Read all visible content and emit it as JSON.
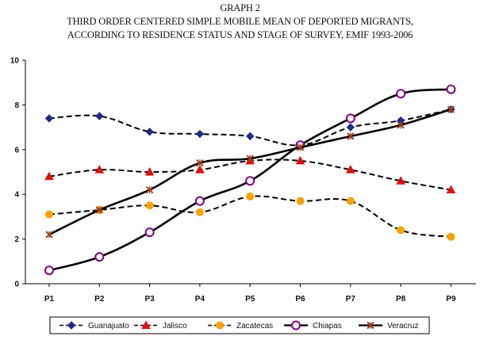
{
  "chart_data": {
    "type": "line",
    "title_lines": [
      "GRAPH 2",
      "THIRD ORDER CENTERED SIMPLE MOBILE MEAN OF DEPORTED MIGRANTS,",
      "ACCORDING TO RESIDENCE STATUS AND STAGE OF SURVEY, EMIF 1993-2006"
    ],
    "categories": [
      "P1",
      "P2",
      "P3",
      "P4",
      "P5",
      "P6",
      "P7",
      "P8",
      "P9"
    ],
    "ylim": [
      0,
      10
    ],
    "yticks": [
      "0",
      "2",
      "4",
      "6",
      "8",
      "10"
    ],
    "xlabel": "",
    "ylabel": "",
    "grid": false,
    "legend_position": "bottom",
    "series": [
      {
        "name": "Guanajuato",
        "marker": "diamond",
        "color": "#1f2a8a",
        "dashed": true,
        "values": [
          7.4,
          7.5,
          6.8,
          6.7,
          6.6,
          6.2,
          7.0,
          7.3,
          7.8
        ]
      },
      {
        "name": "Jalisco",
        "marker": "triangle",
        "color": "#e01010",
        "dashed": true,
        "values": [
          4.8,
          5.1,
          5.0,
          5.1,
          5.5,
          5.5,
          5.1,
          4.6,
          4.2
        ]
      },
      {
        "name": "Zacatecas",
        "marker": "circle",
        "color": "#f5a300",
        "dashed": true,
        "values": [
          3.1,
          3.3,
          3.5,
          3.2,
          3.9,
          3.7,
          3.7,
          2.4,
          2.1
        ]
      },
      {
        "name": "Chiapas",
        "marker": "open-circle",
        "color": "#800080",
        "dashed": false,
        "values": [
          0.6,
          1.2,
          2.3,
          3.7,
          4.6,
          6.2,
          7.4,
          8.5,
          8.7
        ]
      },
      {
        "name": "Veracruz",
        "marker": "x-star",
        "color": "#a04020",
        "dashed": false,
        "values": [
          2.2,
          3.3,
          4.2,
          5.4,
          5.6,
          6.1,
          6.6,
          7.1,
          7.8
        ]
      }
    ]
  }
}
